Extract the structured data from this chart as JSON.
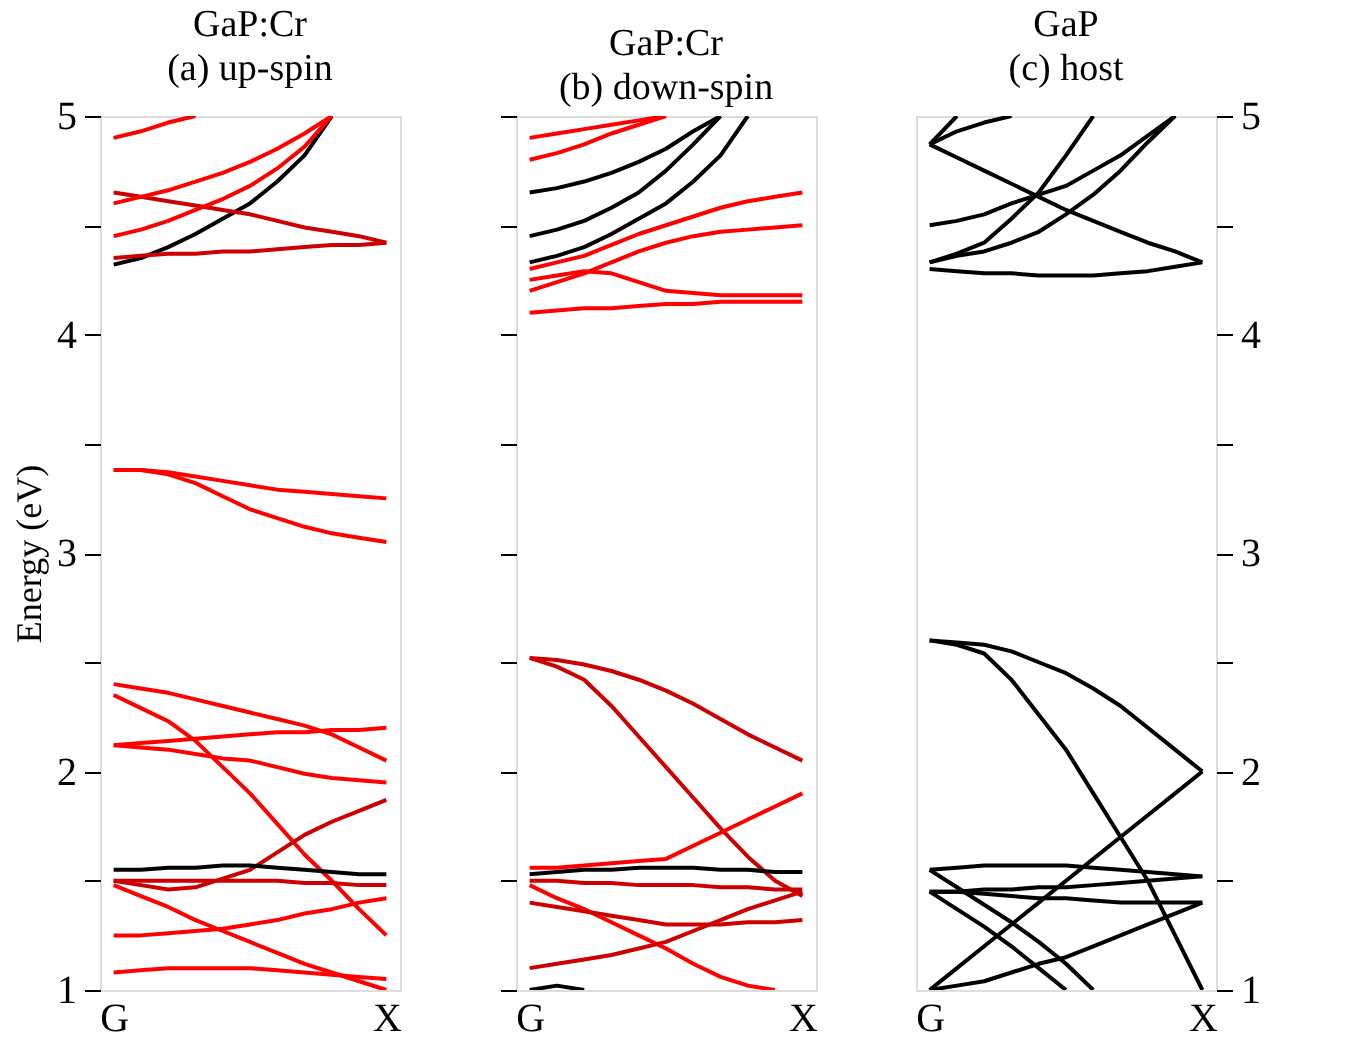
{
  "chart_data": [
    {
      "type": "line",
      "title": "GaP:Cr",
      "subtitle": "(a) up-spin",
      "ylabel": "Energy (eV)",
      "categories": [
        "G",
        null,
        null,
        null,
        null,
        null,
        null,
        null,
        null,
        null,
        "X"
      ],
      "ylim": [
        1,
        5
      ],
      "yticks": [
        1,
        {
          "value": 1.5,
          "label": null
        },
        2,
        {
          "value": 2.5,
          "label": null
        },
        3,
        {
          "value": 3.5,
          "label": null
        },
        4,
        {
          "value": 4.5,
          "label": null
        },
        5
      ],
      "grid": false,
      "legend": false,
      "line_style": "solid",
      "marker": "none",
      "series": [
        {
          "color": "#ff0000",
          "values": [
            3.38,
            3.38,
            3.37,
            3.35,
            3.33,
            3.31,
            3.29,
            3.28,
            3.27,
            3.26,
            3.25
          ]
        },
        {
          "color": "#ff0000",
          "values": [
            3.38,
            3.38,
            3.36,
            3.32,
            3.26,
            3.2,
            3.16,
            3.12,
            3.09,
            3.07,
            3.05
          ]
        },
        {
          "color": "#ff0000",
          "values": [
            2.4,
            2.38,
            2.36,
            2.33,
            2.3,
            2.27,
            2.24,
            2.21,
            2.17,
            2.11,
            2.05
          ]
        },
        {
          "color": "#ff0000",
          "values": [
            2.12,
            2.13,
            2.14,
            2.15,
            2.16,
            2.17,
            2.18,
            2.18,
            2.19,
            2.19,
            2.2
          ]
        },
        {
          "color": "#ff0000",
          "values": [
            2.12,
            2.11,
            2.1,
            2.08,
            2.06,
            2.05,
            2.02,
            1.99,
            1.97,
            1.96,
            1.95
          ]
        },
        {
          "color": "#ff0000",
          "values": [
            2.35,
            2.29,
            2.23,
            2.14,
            2.02,
            1.9,
            1.76,
            1.62,
            1.5,
            1.37,
            1.25
          ]
        },
        {
          "color": "#cc0000",
          "values": [
            1.5,
            1.48,
            1.46,
            1.47,
            1.51,
            1.55,
            1.63,
            1.71,
            1.77,
            1.82,
            1.87
          ]
        },
        {
          "color": "#000000",
          "values": [
            1.55,
            1.55,
            1.56,
            1.56,
            1.57,
            1.57,
            1.56,
            1.55,
            1.54,
            1.53,
            1.53
          ]
        },
        {
          "color": "#cc0000",
          "values": [
            1.5,
            1.5,
            1.5,
            1.5,
            1.5,
            1.5,
            1.5,
            1.49,
            1.49,
            1.48,
            1.48
          ]
        },
        {
          "color": "#ff0000",
          "values": [
            1.48,
            1.43,
            1.38,
            1.32,
            1.27,
            1.22,
            1.17,
            1.12,
            1.08,
            1.04,
            1.0
          ]
        },
        {
          "color": "#ff0000",
          "values": [
            1.25,
            1.25,
            1.26,
            1.27,
            1.28,
            1.3,
            1.32,
            1.35,
            1.37,
            1.4,
            1.42
          ]
        },
        {
          "color": "#ff0000",
          "values": [
            1.08,
            1.09,
            1.1,
            1.1,
            1.1,
            1.1,
            1.09,
            1.08,
            1.07,
            1.06,
            1.05
          ]
        },
        {
          "color": "#000000",
          "values": [
            4.32,
            4.35,
            4.4,
            4.46,
            4.53,
            4.6,
            4.7,
            4.82,
            5.0,
            null,
            null
          ]
        },
        {
          "color": "#cc0000",
          "values": [
            4.35,
            4.36,
            4.37,
            4.37,
            4.38,
            4.38,
            4.39,
            4.4,
            4.41,
            4.41,
            4.42
          ]
        },
        {
          "color": "#cc0000",
          "values": [
            4.65,
            4.63,
            4.61,
            4.59,
            4.57,
            4.55,
            4.52,
            4.49,
            4.47,
            4.45,
            4.42
          ]
        },
        {
          "color": "#ff0000",
          "values": [
            4.45,
            4.48,
            4.52,
            4.57,
            4.62,
            4.68,
            4.76,
            4.86,
            5.0,
            null,
            null
          ]
        },
        {
          "color": "#ff0000",
          "values": [
            4.6,
            4.63,
            4.66,
            4.7,
            4.74,
            4.79,
            4.85,
            4.92,
            5.0,
            null,
            null
          ]
        },
        {
          "color": "#ff0000",
          "values": [
            4.9,
            4.93,
            4.97,
            5.0,
            null,
            null,
            null,
            null,
            null,
            null,
            null
          ]
        }
      ]
    },
    {
      "type": "line",
      "title": "GaP:Cr",
      "subtitle": "(b) down-spin",
      "categories": [
        "G",
        null,
        null,
        null,
        null,
        null,
        null,
        null,
        null,
        null,
        "X"
      ],
      "ylim": [
        1,
        5
      ],
      "yticks": [
        1,
        {
          "value": 1.5,
          "label": null
        },
        2,
        {
          "value": 2.5,
          "label": null
        },
        3,
        {
          "value": 3.5,
          "label": null
        },
        4,
        {
          "value": 4.5,
          "label": null
        },
        5
      ],
      "tick_labels": "x",
      "grid": false,
      "legend": false,
      "line_style": "solid",
      "marker": "none",
      "series": [
        {
          "color": "#cc0000",
          "values": [
            2.52,
            2.51,
            2.49,
            2.46,
            2.42,
            2.37,
            2.31,
            2.24,
            2.17,
            2.11,
            2.05
          ]
        },
        {
          "color": "#cc0000",
          "values": [
            2.52,
            2.48,
            2.42,
            2.3,
            2.16,
            2.02,
            1.88,
            1.74,
            1.61,
            1.5,
            1.43
          ]
        },
        {
          "color": "#ff0000",
          "values": [
            1.56,
            1.56,
            1.57,
            1.58,
            1.59,
            1.6,
            1.66,
            1.72,
            1.78,
            1.84,
            1.9
          ]
        },
        {
          "color": "#000000",
          "values": [
            1.53,
            1.54,
            1.55,
            1.55,
            1.56,
            1.56,
            1.56,
            1.55,
            1.55,
            1.54,
            1.54
          ]
        },
        {
          "color": "#cc0000",
          "values": [
            1.5,
            1.5,
            1.49,
            1.49,
            1.48,
            1.48,
            1.48,
            1.47,
            1.47,
            1.46,
            1.46
          ]
        },
        {
          "color": "#ff0000",
          "values": [
            1.48,
            1.42,
            1.37,
            1.31,
            1.25,
            1.19,
            1.12,
            1.06,
            1.02,
            1.0,
            null
          ]
        },
        {
          "color": "#cc0000",
          "values": [
            1.1,
            1.12,
            1.14,
            1.16,
            1.19,
            1.22,
            1.27,
            1.32,
            1.37,
            1.41,
            1.45
          ]
        },
        {
          "color": "#cc0000",
          "values": [
            1.4,
            1.38,
            1.36,
            1.34,
            1.32,
            1.3,
            1.3,
            1.3,
            1.31,
            1.31,
            1.32
          ]
        },
        {
          "color": "#000000",
          "values": [
            1.0,
            1.02,
            1.0,
            null,
            null,
            null,
            null,
            null,
            null,
            null,
            null
          ]
        },
        {
          "color": "#ff0000",
          "values": [
            4.1,
            4.11,
            4.12,
            4.12,
            4.13,
            4.14,
            4.14,
            4.15,
            4.15,
            4.15,
            4.15
          ]
        },
        {
          "color": "#ff0000",
          "values": [
            4.2,
            4.24,
            4.28,
            4.33,
            4.38,
            4.42,
            4.45,
            4.47,
            4.48,
            4.49,
            4.5
          ]
        },
        {
          "color": "#ff0000",
          "values": [
            4.25,
            4.27,
            4.29,
            4.28,
            4.24,
            4.2,
            4.19,
            4.18,
            4.18,
            4.18,
            4.18
          ]
        },
        {
          "color": "#ff0000",
          "values": [
            4.3,
            4.33,
            4.36,
            4.41,
            4.46,
            4.5,
            4.54,
            4.58,
            4.61,
            4.63,
            4.65
          ]
        },
        {
          "color": "#000000",
          "values": [
            4.33,
            4.36,
            4.4,
            4.46,
            4.53,
            4.6,
            4.7,
            4.82,
            5.0,
            null,
            null
          ]
        },
        {
          "color": "#000000",
          "values": [
            4.45,
            4.48,
            4.52,
            4.58,
            4.65,
            4.75,
            4.87,
            5.0,
            null,
            null,
            null
          ]
        },
        {
          "color": "#000000",
          "values": [
            4.65,
            4.67,
            4.7,
            4.74,
            4.79,
            4.85,
            4.93,
            5.0,
            null,
            null,
            null
          ]
        },
        {
          "color": "#ff0000",
          "values": [
            4.8,
            4.83,
            4.87,
            4.92,
            4.96,
            5.0,
            null,
            null,
            null,
            null,
            null
          ]
        },
        {
          "color": "#ff0000",
          "values": [
            4.9,
            4.92,
            4.94,
            4.96,
            4.98,
            5.0,
            null,
            null,
            null,
            null,
            null
          ]
        }
      ]
    },
    {
      "type": "line",
      "title": "GaP",
      "subtitle": "(c) host",
      "categories": [
        "G",
        null,
        null,
        null,
        null,
        null,
        null,
        null,
        null,
        null,
        "X"
      ],
      "ylim": [
        1,
        5
      ],
      "yticks": [
        1,
        {
          "value": 1.5,
          "label": null
        },
        2,
        {
          "value": 2.5,
          "label": null
        },
        3,
        {
          "value": 3.5,
          "label": null
        },
        4,
        {
          "value": 4.5,
          "label": null
        },
        5
      ],
      "grid": false,
      "legend": false,
      "line_style": "solid",
      "marker": "none",
      "series": [
        {
          "color": "#000000",
          "values": [
            2.6,
            2.59,
            2.58,
            2.55,
            2.5,
            2.45,
            2.38,
            2.3,
            2.2,
            2.1,
            2.0
          ]
        },
        {
          "color": "#000000",
          "values": [
            2.6,
            2.58,
            2.54,
            2.42,
            2.26,
            2.1,
            1.9,
            1.7,
            1.5,
            1.25,
            1.0
          ]
        },
        {
          "color": "#000000",
          "values": [
            1.0,
            1.1,
            1.2,
            1.3,
            1.4,
            1.5,
            1.6,
            1.7,
            1.8,
            1.9,
            2.0
          ]
        },
        {
          "color": "#000000",
          "values": [
            1.0,
            1.02,
            1.04,
            1.08,
            1.12,
            1.15,
            1.2,
            1.25,
            1.3,
            1.35,
            1.4
          ]
        },
        {
          "color": "#000000",
          "values": [
            1.55,
            1.56,
            1.57,
            1.57,
            1.57,
            1.57,
            1.56,
            1.55,
            1.54,
            1.53,
            1.52
          ]
        },
        {
          "color": "#000000",
          "values": [
            1.45,
            1.45,
            1.46,
            1.46,
            1.47,
            1.47,
            1.48,
            1.49,
            1.5,
            1.51,
            1.52
          ]
        },
        {
          "color": "#000000",
          "values": [
            1.45,
            1.45,
            1.44,
            1.43,
            1.42,
            1.42,
            1.41,
            1.4,
            1.4,
            1.4,
            1.4
          ]
        },
        {
          "color": "#000000",
          "values": [
            1.45,
            1.37,
            1.29,
            1.2,
            1.1,
            1.0,
            null,
            null,
            null,
            null,
            null
          ]
        },
        {
          "color": "#000000",
          "values": [
            1.55,
            1.47,
            1.39,
            1.31,
            1.22,
            1.12,
            1.0,
            null,
            null,
            null,
            null
          ]
        },
        {
          "color": "#000000",
          "values": [
            4.3,
            4.29,
            4.28,
            4.28,
            4.27,
            4.27,
            4.27,
            4.28,
            4.29,
            4.31,
            4.33
          ]
        },
        {
          "color": "#000000",
          "values": [
            4.87,
            4.81,
            4.75,
            4.69,
            4.63,
            4.57,
            4.52,
            4.47,
            4.42,
            4.38,
            4.33
          ]
        },
        {
          "color": "#000000",
          "values": [
            4.33,
            4.37,
            4.42,
            4.53,
            4.65,
            4.82,
            5.0,
            null,
            null,
            null,
            null
          ]
        },
        {
          "color": "#000000",
          "values": [
            4.33,
            4.36,
            4.38,
            4.42,
            4.47,
            4.55,
            4.64,
            4.75,
            4.88,
            5.0,
            null
          ]
        },
        {
          "color": "#000000",
          "values": [
            4.5,
            4.52,
            4.55,
            4.6,
            4.64,
            4.68,
            4.75,
            4.82,
            4.91,
            5.0,
            null
          ]
        },
        {
          "color": "#000000",
          "values": [
            4.87,
            4.93,
            4.97,
            5.0,
            null,
            null,
            null,
            null,
            null,
            null,
            null
          ]
        },
        {
          "color": "#000000",
          "values": [
            4.87,
            5.0,
            null,
            null,
            null,
            null,
            null,
            null,
            null,
            null,
            null
          ]
        }
      ]
    }
  ]
}
